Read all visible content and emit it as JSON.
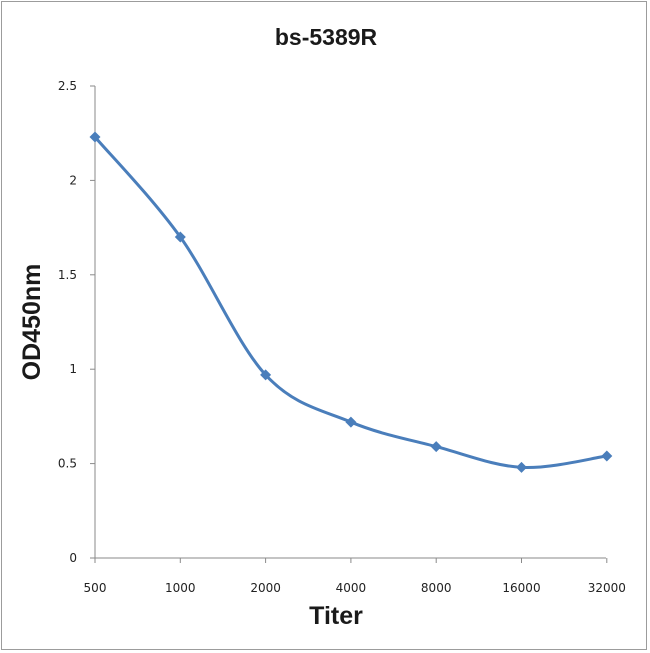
{
  "chart_data": {
    "type": "line",
    "title": "bs-5389R",
    "xlabel": "Titer",
    "ylabel": "OD450nm",
    "categories": [
      "500",
      "1000",
      "2000",
      "4000",
      "8000",
      "16000",
      "32000"
    ],
    "series": [
      {
        "values": [
          2.23,
          1.7,
          0.97,
          0.72,
          0.59,
          0.48,
          0.54
        ],
        "color": "#4a7ebb"
      }
    ],
    "ylim": [
      0,
      2.5
    ],
    "yticks": [
      "0",
      "0.5",
      "1",
      "1.5",
      "2",
      "2.5"
    ],
    "smooth": true,
    "marker": "diamond",
    "grid": false,
    "legend": "none"
  }
}
